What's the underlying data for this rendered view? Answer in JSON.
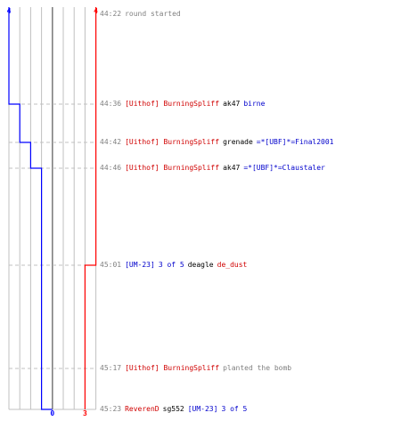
{
  "chart_data": {
    "type": "line",
    "series": [
      {
        "color": "#0000ff",
        "start": 4,
        "values": [
          4,
          3,
          2,
          1,
          1,
          1,
          0
        ],
        "end_label": "0",
        "start_label": "4"
      },
      {
        "color": "#ff0000",
        "start": 4,
        "values": [
          4,
          4,
          4,
          4,
          3,
          3,
          3
        ],
        "end_label": "3",
        "start_label": "4"
      }
    ],
    "grid": true
  },
  "colors": {
    "team_red": "#d00000",
    "team_blue": "#0000cc",
    "timestamp": "#808080",
    "grid": "#c0c0c0",
    "zero_line": "#808080",
    "dashed": "#c0c0c0"
  },
  "events": [
    {
      "time": "44:22",
      "parts": [
        {
          "text": "round started",
          "cls": "gray"
        }
      ]
    },
    {
      "time": "44:36",
      "parts": [
        {
          "text": "[Uithof] BurningSpliff",
          "cls": "red"
        },
        {
          "text": "ak47",
          "cls": "black"
        },
        {
          "text": "birne",
          "cls": "blue"
        }
      ]
    },
    {
      "time": "44:42",
      "parts": [
        {
          "text": "[Uithof] BurningSpliff",
          "cls": "red"
        },
        {
          "text": "grenade",
          "cls": "black"
        },
        {
          "text": "=*[UBF]*=Final2001",
          "cls": "blue"
        }
      ]
    },
    {
      "time": "44:46",
      "parts": [
        {
          "text": "[Uithof] BurningSpliff",
          "cls": "red"
        },
        {
          "text": "ak47",
          "cls": "black"
        },
        {
          "text": "=*[UBF]*=Claustaler",
          "cls": "blue"
        }
      ]
    },
    {
      "time": "45:01",
      "parts": [
        {
          "text": "[UM-23]",
          "cls": "blue"
        },
        {
          "text": "3 of 5",
          "cls": "blue"
        },
        {
          "text": "deagle",
          "cls": "black"
        },
        {
          "text": "de_dust",
          "cls": "red"
        }
      ]
    },
    {
      "time": "45:17",
      "parts": [
        {
          "text": "[Uithof] BurningSpliff",
          "cls": "red"
        },
        {
          "text": "planted the bomb",
          "cls": "gray"
        }
      ]
    },
    {
      "time": "45:23",
      "parts": [
        {
          "text": "ReverenD",
          "cls": "red"
        },
        {
          "text": "sg552",
          "cls": "black"
        },
        {
          "text": "[UM-23]",
          "cls": "blue"
        },
        {
          "text": "3 of 5",
          "cls": "blue"
        }
      ]
    }
  ]
}
